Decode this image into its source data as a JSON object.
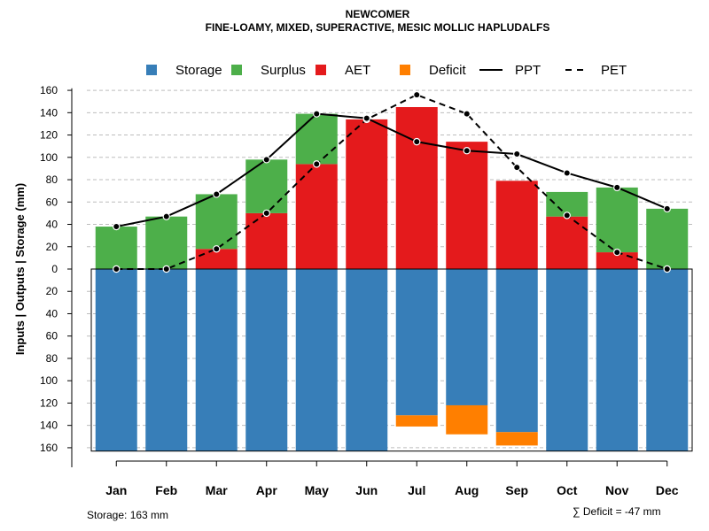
{
  "chart_data": {
    "type": "bar",
    "title": "NEWCOMER",
    "subtitle": "FINE-LOAMY, MIXED, SUPERACTIVE, MESIC MOLLIC HAPLUDALFS",
    "ylabel": "Inputs | Outputs | Storage    (mm)",
    "xlabel": "",
    "ylim": [
      -165,
      165
    ],
    "grid": true,
    "legend_position": "top",
    "categories": [
      "Jan",
      "Feb",
      "Mar",
      "Apr",
      "May",
      "Jun",
      "Jul",
      "Aug",
      "Sep",
      "Oct",
      "Nov",
      "Dec"
    ],
    "y_ticks": [
      160,
      140,
      120,
      100,
      80,
      60,
      40,
      20,
      0,
      20,
      40,
      60,
      80,
      100,
      120,
      140,
      160
    ],
    "legend": [
      {
        "key": "storage",
        "label": "Storage",
        "kind": "box",
        "color": "#377eb8"
      },
      {
        "key": "surplus",
        "label": "Surplus",
        "kind": "box",
        "color": "#4daf4a"
      },
      {
        "key": "aet",
        "label": "AET",
        "kind": "box",
        "color": "#e41a1c"
      },
      {
        "key": "deficit",
        "label": "Deficit",
        "kind": "box",
        "color": "#ff7f00"
      },
      {
        "key": "ppt",
        "label": "PPT",
        "kind": "line",
        "dash": "solid",
        "color": "#000000"
      },
      {
        "key": "pet",
        "label": "PET",
        "kind": "line",
        "dash": "dashed",
        "color": "#000000"
      }
    ],
    "series": [
      {
        "name": "AET",
        "key": "aet",
        "values": [
          0,
          0,
          18,
          50,
          94,
          134,
          145,
          114,
          79,
          47,
          15,
          0
        ]
      },
      {
        "name": "Surplus",
        "key": "surplus",
        "values": [
          38,
          47,
          49,
          48,
          45,
          0,
          0,
          0,
          0,
          22,
          58,
          54
        ]
      },
      {
        "name": "Storage",
        "key": "storage",
        "values": [
          163,
          163,
          163,
          163,
          163,
          163,
          131,
          122,
          146,
          163,
          163,
          163
        ]
      },
      {
        "name": "Deficit",
        "key": "deficit",
        "values": [
          0,
          0,
          0,
          0,
          0,
          0,
          10,
          26,
          12,
          0,
          0,
          0
        ]
      },
      {
        "name": "PPT",
        "key": "ppt",
        "values": [
          38,
          47,
          67,
          98,
          139,
          135,
          114,
          106,
          103,
          86,
          73,
          54
        ]
      },
      {
        "name": "PET",
        "key": "pet",
        "values": [
          0,
          0,
          18,
          50,
          94,
          134,
          156,
          139,
          91,
          48,
          15,
          0
        ]
      }
    ],
    "storage_capacity": 163,
    "annotations": {
      "storage_note": "Storage: 163 mm",
      "deficit_note": "∑ Deficit = -47 mm"
    }
  }
}
